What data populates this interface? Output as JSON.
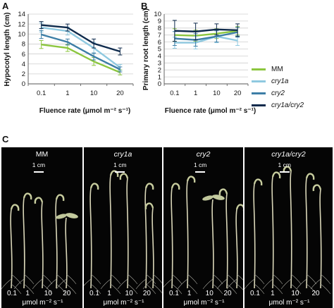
{
  "panel_letters": {
    "a": "A",
    "b": "B",
    "c": "C"
  },
  "legend": [
    {
      "label": "MM",
      "color": "#8cc63f"
    },
    {
      "label": "cry1a",
      "color": "#8fc9e0"
    },
    {
      "label": "cry2",
      "color": "#3d7ea6"
    },
    {
      "label": "cry1a/cry2",
      "color": "#0e2a4c"
    }
  ],
  "chart_data": [
    {
      "type": "line",
      "panel": "A",
      "x": [
        "0.1",
        "1",
        "10",
        "20"
      ],
      "xlabel": "Fluence rate (μmol m⁻² s⁻¹)",
      "ylabel": "Hypocotyl length (cm)",
      "ylim": [
        0,
        14
      ],
      "yticks": [
        0,
        2,
        4,
        6,
        8,
        10,
        12,
        14
      ],
      "grid": true,
      "series": [
        {
          "name": "MM",
          "color": "#8cc63f",
          "values": [
            7.9,
            7.2,
            4.5,
            2.3
          ],
          "errors": [
            0.8,
            0.7,
            0.8,
            0.5
          ]
        },
        {
          "name": "cry1a",
          "color": "#8fc9e0",
          "values": [
            11.3,
            10.6,
            7.2,
            3.3
          ],
          "errors": [
            0.9,
            0.8,
            1.1,
            0.6
          ]
        },
        {
          "name": "cry2",
          "color": "#3d7ea6",
          "values": [
            9.9,
            8.4,
            5.5,
            2.9
          ],
          "errors": [
            0.8,
            0.6,
            0.7,
            0.5
          ]
        },
        {
          "name": "cry1a/cry2",
          "color": "#0e2a4c",
          "values": [
            11.8,
            11.3,
            8.1,
            6.5
          ],
          "errors": [
            0.7,
            0.7,
            0.9,
            0.7
          ]
        }
      ]
    },
    {
      "type": "line",
      "panel": "B",
      "x": [
        "0.1",
        "1",
        "10",
        "20"
      ],
      "xlabel": "Fluence rate (μmol m⁻² s⁻¹)",
      "ylabel": "Primary root length (cm)",
      "ylim": [
        0,
        10
      ],
      "yticks": [
        0,
        1,
        2,
        3,
        4,
        5,
        6,
        7,
        8,
        9,
        10
      ],
      "grid": true,
      "series": [
        {
          "name": "MM",
          "color": "#8cc63f",
          "values": [
            7.0,
            6.9,
            7.2,
            7.6
          ],
          "errors": [
            0.9,
            0.8,
            0.7,
            0.6
          ]
        },
        {
          "name": "cry1a",
          "color": "#8fc9e0",
          "values": [
            5.9,
            5.9,
            6.8,
            6.2
          ],
          "errors": [
            0.8,
            0.9,
            0.9,
            0.7
          ]
        },
        {
          "name": "cry2",
          "color": "#3d7ea6",
          "values": [
            6.5,
            6.3,
            6.8,
            7.4
          ],
          "errors": [
            1.0,
            0.9,
            0.8,
            0.7
          ]
        },
        {
          "name": "cry1a/cry2",
          "color": "#0e2a4c",
          "values": [
            7.6,
            7.5,
            7.8,
            7.7
          ],
          "errors": [
            1.5,
            1.2,
            0.8,
            0.9
          ]
        }
      ]
    }
  ],
  "photos": [
    {
      "title": "MM",
      "italic": false,
      "scale_label": "1 cm"
    },
    {
      "title": "cry1a",
      "italic": true,
      "scale_label": "1 cm"
    },
    {
      "title": "cry2",
      "italic": true,
      "scale_label": "1 cm"
    },
    {
      "title": "cry1a/cry2",
      "italic": true,
      "scale_label": "1 cm"
    }
  ],
  "photo_axis": {
    "fluence_labels": [
      "0.1",
      "1",
      "10",
      "20"
    ],
    "unit_label": "μmol m⁻² s⁻¹"
  }
}
